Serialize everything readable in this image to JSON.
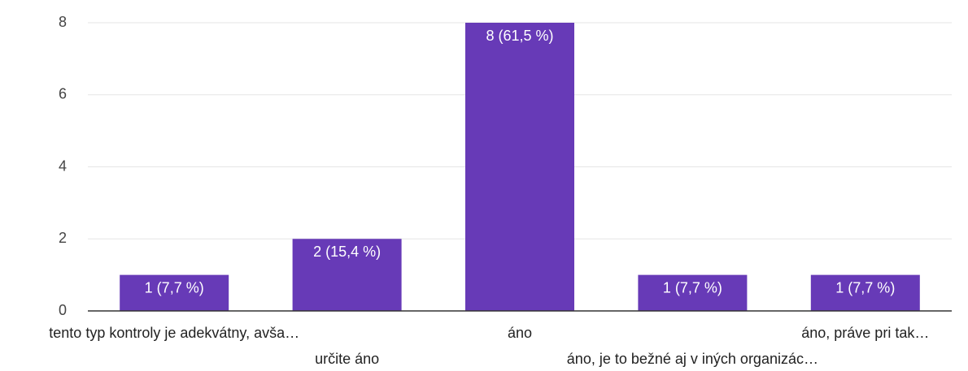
{
  "chart_data": {
    "type": "bar",
    "categories": [
      "tento typ kontroly je adekvátny, avša…",
      "určite áno",
      "áno",
      "áno, je to bežné aj v iných organizác…",
      "áno, práve pri tak…"
    ],
    "values": [
      1,
      2,
      8,
      1,
      1
    ],
    "value_labels": [
      "1 (7,7 %)",
      "2 (15,4 %)",
      "8 (61,5 %)",
      "1 (7,7 %)",
      "1 (7,7 %)"
    ],
    "color": "#673ab7",
    "ylim": [
      0,
      8
    ],
    "yticks": [
      0,
      2,
      4,
      6,
      8
    ],
    "grid": true
  }
}
